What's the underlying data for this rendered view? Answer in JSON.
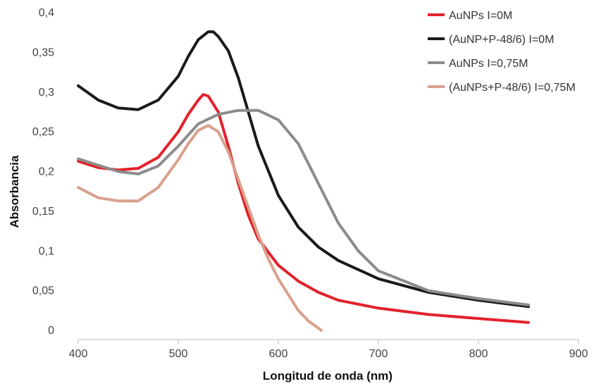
{
  "chart_data": {
    "type": "line",
    "title": "",
    "xlabel": "Longitud de onda (nm)",
    "ylabel": "Absorbancia",
    "xlim": [
      400,
      900
    ],
    "ylim": [
      0,
      0.4
    ],
    "x_ticks": [
      400,
      500,
      600,
      700,
      800,
      900
    ],
    "x_tick_labels": [
      "400",
      "500",
      "600",
      "700",
      "800",
      "900"
    ],
    "y_ticks": [
      0,
      0.05,
      0.1,
      0.15,
      0.2,
      0.25,
      0.3,
      0.35,
      0.4
    ],
    "y_tick_labels": [
      "0",
      "0,05",
      "0,1",
      "0,15",
      "0,2",
      "0,25",
      "0,3",
      "0,35",
      "0,4"
    ],
    "grid": false,
    "legend_position": "top-right",
    "series": [
      {
        "name": "AuNPs I=0M",
        "color": "#e3212b",
        "x": [
          400,
          420,
          440,
          460,
          480,
          500,
          510,
          520,
          525,
          530,
          540,
          550,
          560,
          570,
          580,
          600,
          620,
          640,
          660,
          700,
          750,
          800,
          850
        ],
        "y": [
          0.213,
          0.205,
          0.202,
          0.204,
          0.218,
          0.25,
          0.272,
          0.29,
          0.297,
          0.295,
          0.275,
          0.232,
          0.185,
          0.145,
          0.115,
          0.082,
          0.062,
          0.048,
          0.038,
          0.028,
          0.02,
          0.015,
          0.01
        ]
      },
      {
        "name": "(AuNP+P-48/6) I=0M",
        "color": "#1a1a1a",
        "x": [
          400,
          420,
          440,
          460,
          480,
          500,
          510,
          520,
          530,
          535,
          540,
          550,
          560,
          570,
          580,
          600,
          620,
          640,
          660,
          700,
          750,
          800,
          850
        ],
        "y": [
          0.308,
          0.29,
          0.28,
          0.278,
          0.29,
          0.32,
          0.345,
          0.366,
          0.376,
          0.376,
          0.37,
          0.352,
          0.318,
          0.275,
          0.232,
          0.17,
          0.13,
          0.105,
          0.088,
          0.065,
          0.048,
          0.038,
          0.03
        ]
      },
      {
        "name": "AuNPs I=0,75M",
        "color": "#8c8c8c",
        "x": [
          400,
          420,
          440,
          460,
          480,
          500,
          520,
          540,
          560,
          580,
          600,
          620,
          640,
          660,
          680,
          700,
          750,
          800,
          850
        ],
        "y": [
          0.216,
          0.208,
          0.2,
          0.197,
          0.207,
          0.232,
          0.26,
          0.272,
          0.277,
          0.277,
          0.265,
          0.235,
          0.185,
          0.135,
          0.1,
          0.075,
          0.05,
          0.04,
          0.032
        ]
      },
      {
        "name": "(AuNPs+P-48/6) I=0,75M",
        "color": "#d9a08c",
        "x": [
          400,
          420,
          440,
          460,
          480,
          500,
          510,
          520,
          530,
          540,
          550,
          560,
          570,
          580,
          590,
          600,
          610,
          620,
          630,
          643
        ],
        "y": [
          0.18,
          0.167,
          0.163,
          0.163,
          0.18,
          0.215,
          0.235,
          0.252,
          0.258,
          0.25,
          0.225,
          0.19,
          0.155,
          0.12,
          0.09,
          0.065,
          0.045,
          0.025,
          0.012,
          0.0
        ]
      }
    ]
  }
}
